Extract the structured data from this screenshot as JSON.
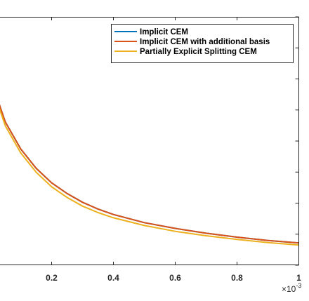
{
  "chart_data": {
    "type": "line",
    "title": "",
    "xlabel": "",
    "ylabel": "",
    "xlim": [
      0,
      1
    ],
    "x_exponent_label": "×10",
    "x_exponent_power": "-3",
    "x_ticks": [
      0.2,
      0.4,
      0.6,
      0.8,
      1
    ],
    "x_tick_labels": [
      "0.2",
      "0.4",
      "0.6",
      "0.8",
      "1"
    ],
    "grid": false,
    "legend_position": "top-right",
    "series": [
      {
        "name": "Implicit CEM",
        "color": "#0072BD",
        "points": [
          [
            0,
            1.0
          ],
          [
            0.02,
            0.88
          ],
          [
            0.05,
            0.74
          ],
          [
            0.1,
            0.6
          ],
          [
            0.15,
            0.5
          ],
          [
            0.2,
            0.425
          ],
          [
            0.25,
            0.37
          ],
          [
            0.3,
            0.325
          ],
          [
            0.35,
            0.29
          ],
          [
            0.4,
            0.262
          ],
          [
            0.5,
            0.22
          ],
          [
            0.6,
            0.19
          ],
          [
            0.7,
            0.165
          ],
          [
            0.8,
            0.145
          ],
          [
            0.9,
            0.128
          ],
          [
            1.0,
            0.115
          ]
        ]
      },
      {
        "name": "Implicit CEM with additional basis",
        "color": "#D95319",
        "points": [
          [
            0,
            1.0
          ],
          [
            0.02,
            0.88
          ],
          [
            0.05,
            0.74
          ],
          [
            0.1,
            0.6
          ],
          [
            0.15,
            0.5
          ],
          [
            0.2,
            0.425
          ],
          [
            0.25,
            0.37
          ],
          [
            0.3,
            0.325
          ],
          [
            0.35,
            0.29
          ],
          [
            0.4,
            0.262
          ],
          [
            0.5,
            0.22
          ],
          [
            0.6,
            0.19
          ],
          [
            0.7,
            0.165
          ],
          [
            0.8,
            0.145
          ],
          [
            0.9,
            0.128
          ],
          [
            1.0,
            0.115
          ]
        ]
      },
      {
        "name": "Partially Explicit Splitting CEM",
        "color": "#EDB120",
        "points": [
          [
            0,
            0.98
          ],
          [
            0.02,
            0.86
          ],
          [
            0.05,
            0.72
          ],
          [
            0.1,
            0.58
          ],
          [
            0.15,
            0.48
          ],
          [
            0.2,
            0.405
          ],
          [
            0.25,
            0.35
          ],
          [
            0.3,
            0.305
          ],
          [
            0.35,
            0.272
          ],
          [
            0.4,
            0.245
          ],
          [
            0.5,
            0.205
          ],
          [
            0.6,
            0.175
          ],
          [
            0.7,
            0.152
          ],
          [
            0.8,
            0.133
          ],
          [
            0.9,
            0.117
          ],
          [
            1.0,
            0.104
          ]
        ]
      }
    ]
  }
}
